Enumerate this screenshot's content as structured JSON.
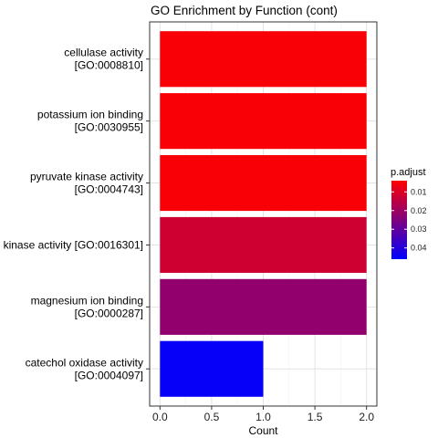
{
  "chart_data": {
    "type": "bar",
    "orientation": "horizontal",
    "title": "GO Enrichment by Function (cont)",
    "xlabel": "Count",
    "ylabel": "",
    "xlim": [
      0,
      2.0
    ],
    "xticks": [
      0.0,
      0.5,
      1.0,
      1.5,
      2.0
    ],
    "xtick_labels": [
      "0.0",
      "0.5",
      "1.0",
      "1.5",
      "2.0"
    ],
    "grid": true,
    "categories": [
      [
        "cellulase activity",
        "[GO:0008810]"
      ],
      [
        "potassium ion binding",
        "[GO:0030955]"
      ],
      [
        "pyruvate kinase activity",
        "[GO:0004743]"
      ],
      [
        "kinase activity [GO:0016301]"
      ],
      [
        "magnesium ion binding",
        "[GO:0000287]"
      ],
      [
        "catechol oxidase activity",
        "[GO:0004097]"
      ]
    ],
    "values": [
      2,
      2,
      2,
      2,
      2,
      1
    ],
    "p_adjust": [
      0.005,
      0.005,
      0.005,
      0.012,
      0.022,
      0.045
    ],
    "legend": {
      "title": "p.adjust",
      "position": "right",
      "range": [
        0.004,
        0.046
      ],
      "ticks": [
        0.01,
        0.02,
        0.03,
        0.04
      ],
      "tick_labels": [
        "0.01",
        "0.02",
        "0.03",
        "0.04"
      ],
      "color_low": "#ff0000",
      "color_high": "#0000ff"
    }
  }
}
